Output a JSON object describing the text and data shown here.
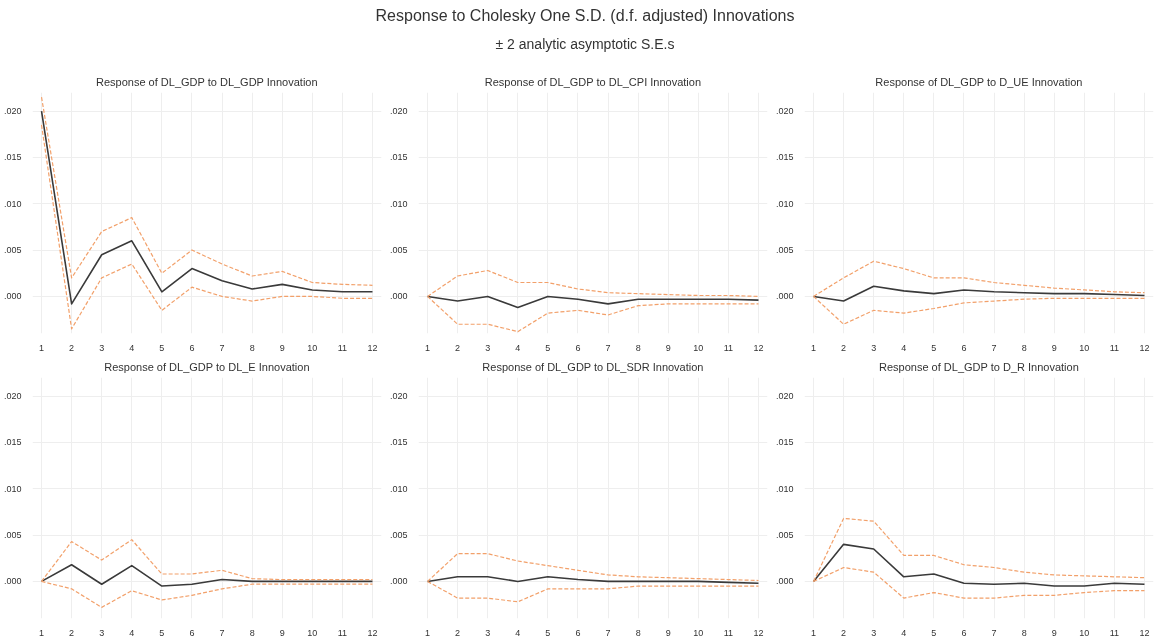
{
  "chart_data": [
    {
      "type": "other",
      "title": "Response to Cholesky One S.D. (d.f. adjusted) Innovations",
      "subtitle": "± 2 analytic asymptotic S.E.s"
    },
    {
      "type": "line",
      "title": "Response of DL_GDP to DL_GDP Innovation",
      "x": [
        1,
        2,
        3,
        4,
        5,
        6,
        7,
        8,
        9,
        10,
        11,
        12
      ],
      "xlim": [
        0.7,
        12.3
      ],
      "xticks": [
        1,
        2,
        3,
        4,
        5,
        6,
        7,
        8,
        9,
        10,
        11,
        12
      ],
      "ylim": [
        -0.004,
        0.022
      ],
      "yticks": [
        {
          "value": 0,
          "label": ".000"
        },
        {
          "value": 0.005,
          "label": ".005"
        },
        {
          "value": 0.01,
          "label": ".010"
        },
        {
          "value": 0.015,
          "label": ".015"
        },
        {
          "value": 0.02,
          "label": ".020"
        }
      ],
      "grid": true,
      "series": [
        {
          "color": "#3a3a3a",
          "line_style": "solid",
          "values": [
            0.02,
            -0.0008,
            0.0045,
            0.006,
            0.0005,
            0.003,
            0.0017,
            0.0008,
            0.0013,
            0.0007,
            0.0005,
            0.0005
          ]
        },
        {
          "color": "#f2a06a",
          "line_style": "dashed",
          "values": [
            0.0215,
            0.002,
            0.007,
            0.0085,
            0.0025,
            0.005,
            0.0035,
            0.0022,
            0.0027,
            0.0015,
            0.0013,
            0.0012
          ]
        },
        {
          "color": "#f2a06a",
          "line_style": "dashed",
          "values": [
            0.0185,
            -0.0035,
            0.002,
            0.0035,
            -0.0015,
            0.001,
            0.0,
            -0.0005,
            0.0,
            0.0,
            -0.0002,
            -0.0002
          ]
        }
      ]
    },
    {
      "type": "line",
      "title": "Response of DL_GDP to DL_CPI Innovation",
      "x": [
        1,
        2,
        3,
        4,
        5,
        6,
        7,
        8,
        9,
        10,
        11,
        12
      ],
      "xlim": [
        0.7,
        12.3
      ],
      "xticks": [
        1,
        2,
        3,
        4,
        5,
        6,
        7,
        8,
        9,
        10,
        11,
        12
      ],
      "ylim": [
        -0.004,
        0.022
      ],
      "yticks": [
        {
          "value": 0,
          "label": ".000"
        },
        {
          "value": 0.005,
          "label": ".005"
        },
        {
          "value": 0.01,
          "label": ".010"
        },
        {
          "value": 0.015,
          "label": ".015"
        },
        {
          "value": 0.02,
          "label": ".020"
        }
      ],
      "grid": true,
      "series": [
        {
          "color": "#3a3a3a",
          "line_style": "solid",
          "values": [
            0,
            -0.0005,
            0,
            -0.0012,
            0,
            -0.0003,
            -0.0008,
            -0.0003,
            -0.0003,
            -0.0003,
            -0.0003,
            -0.0004
          ]
        },
        {
          "color": "#f2a06a",
          "line_style": "dashed",
          "values": [
            0,
            0.0022,
            0.0028,
            0.0015,
            0.0015,
            0.0008,
            0.0004,
            0.0003,
            0.0002,
            0.0001,
            0.0001,
            0.0
          ]
        },
        {
          "color": "#f2a06a",
          "line_style": "dashed",
          "values": [
            0,
            -0.003,
            -0.003,
            -0.0038,
            -0.0018,
            -0.0015,
            -0.002,
            -0.001,
            -0.0008,
            -0.0008,
            -0.0008,
            -0.0008
          ]
        }
      ]
    },
    {
      "type": "line",
      "title": "Response of DL_GDP to D_UE Innovation",
      "x": [
        1,
        2,
        3,
        4,
        5,
        6,
        7,
        8,
        9,
        10,
        11,
        12
      ],
      "xlim": [
        0.7,
        12.3
      ],
      "xticks": [
        1,
        2,
        3,
        4,
        5,
        6,
        7,
        8,
        9,
        10,
        11,
        12
      ],
      "ylim": [
        -0.004,
        0.022
      ],
      "yticks": [
        {
          "value": 0,
          "label": ".000"
        },
        {
          "value": 0.005,
          "label": ".005"
        },
        {
          "value": 0.01,
          "label": ".010"
        },
        {
          "value": 0.015,
          "label": ".015"
        },
        {
          "value": 0.02,
          "label": ".020"
        }
      ],
      "grid": true,
      "series": [
        {
          "color": "#3a3a3a",
          "line_style": "solid",
          "values": [
            0,
            -0.0005,
            0.0011,
            0.0006,
            0.0003,
            0.0007,
            0.0005,
            0.0004,
            0.0003,
            0.0003,
            0.0002,
            0.0001
          ]
        },
        {
          "color": "#f2a06a",
          "line_style": "dashed",
          "values": [
            0,
            0.002,
            0.0038,
            0.003,
            0.002,
            0.002,
            0.0015,
            0.0012,
            0.0009,
            0.0007,
            0.0005,
            0.0004
          ]
        },
        {
          "color": "#f2a06a",
          "line_style": "dashed",
          "values": [
            0,
            -0.003,
            -0.0015,
            -0.0018,
            -0.0013,
            -0.0007,
            -0.0005,
            -0.0003,
            -0.0002,
            -0.0002,
            -0.0002,
            -0.0002
          ]
        }
      ]
    },
    {
      "type": "line",
      "title": "Response of DL_GDP to DL_E Innovation",
      "x": [
        1,
        2,
        3,
        4,
        5,
        6,
        7,
        8,
        9,
        10,
        11,
        12
      ],
      "xlim": [
        0.7,
        12.3
      ],
      "xticks": [
        1,
        2,
        3,
        4,
        5,
        6,
        7,
        8,
        9,
        10,
        11,
        12
      ],
      "ylim": [
        -0.004,
        0.022
      ],
      "yticks": [
        {
          "value": 0,
          "label": ".000"
        },
        {
          "value": 0.005,
          "label": ".005"
        },
        {
          "value": 0.01,
          "label": ".010"
        },
        {
          "value": 0.015,
          "label": ".015"
        },
        {
          "value": 0.02,
          "label": ".020"
        }
      ],
      "grid": true,
      "series": [
        {
          "color": "#3a3a3a",
          "line_style": "solid",
          "values": [
            0,
            0.0018,
            -0.0003,
            0.0017,
            -0.0005,
            -0.0003,
            0.0002,
            0.0,
            0,
            0,
            0,
            0
          ]
        },
        {
          "color": "#f2a06a",
          "line_style": "dashed",
          "values": [
            0,
            0.0043,
            0.0023,
            0.0045,
            0.0008,
            0.0008,
            0.0012,
            0.0003,
            0.0002,
            0.0002,
            0.0002,
            0.0002
          ]
        },
        {
          "color": "#f2a06a",
          "line_style": "dashed",
          "values": [
            0,
            -0.0008,
            -0.0028,
            -0.001,
            -0.002,
            -0.0015,
            -0.0008,
            -0.0003,
            -0.0003,
            -0.0003,
            -0.0003,
            -0.0003
          ]
        }
      ]
    },
    {
      "type": "line",
      "title": "Response of DL_GDP to DL_SDR Innovation",
      "x": [
        1,
        2,
        3,
        4,
        5,
        6,
        7,
        8,
        9,
        10,
        11,
        12
      ],
      "xlim": [
        0.7,
        12.3
      ],
      "xticks": [
        1,
        2,
        3,
        4,
        5,
        6,
        7,
        8,
        9,
        10,
        11,
        12
      ],
      "ylim": [
        -0.004,
        0.022
      ],
      "yticks": [
        {
          "value": 0,
          "label": ".000"
        },
        {
          "value": 0.005,
          "label": ".005"
        },
        {
          "value": 0.01,
          "label": ".010"
        },
        {
          "value": 0.015,
          "label": ".015"
        },
        {
          "value": 0.02,
          "label": ".020"
        }
      ],
      "grid": true,
      "series": [
        {
          "color": "#3a3a3a",
          "line_style": "solid",
          "values": [
            0,
            0.0005,
            0.0005,
            0,
            0.0005,
            0.0002,
            0,
            0,
            0,
            0,
            -0.0001,
            -0.0002
          ]
        },
        {
          "color": "#f2a06a",
          "line_style": "dashed",
          "values": [
            0,
            0.003,
            0.003,
            0.0022,
            0.0017,
            0.0012,
            0.0007,
            0.0005,
            0.0004,
            0.0003,
            0.0002,
            0.0001
          ]
        },
        {
          "color": "#f2a06a",
          "line_style": "dashed",
          "values": [
            0,
            -0.0018,
            -0.0018,
            -0.0022,
            -0.0008,
            -0.0008,
            -0.0008,
            -0.0005,
            -0.0005,
            -0.0005,
            -0.0005,
            -0.0005
          ]
        }
      ]
    },
    {
      "type": "line",
      "title": "Response of DL_GDP to D_R Innovation",
      "x": [
        1,
        2,
        3,
        4,
        5,
        6,
        7,
        8,
        9,
        10,
        11,
        12
      ],
      "xlim": [
        0.7,
        12.3
      ],
      "xticks": [
        1,
        2,
        3,
        4,
        5,
        6,
        7,
        8,
        9,
        10,
        11,
        12
      ],
      "ylim": [
        -0.004,
        0.022
      ],
      "yticks": [
        {
          "value": 0,
          "label": ".000"
        },
        {
          "value": 0.005,
          "label": ".005"
        },
        {
          "value": 0.01,
          "label": ".010"
        },
        {
          "value": 0.015,
          "label": ".015"
        },
        {
          "value": 0.02,
          "label": ".020"
        }
      ],
      "grid": true,
      "series": [
        {
          "color": "#3a3a3a",
          "line_style": "solid",
          "values": [
            0,
            0.004,
            0.0035,
            0.0005,
            0.0008,
            -0.0002,
            -0.0003,
            -0.0002,
            -0.0005,
            -0.0005,
            -0.0002,
            -0.0003
          ]
        },
        {
          "color": "#f2a06a",
          "line_style": "dashed",
          "values": [
            0,
            0.0068,
            0.0065,
            0.0028,
            0.0028,
            0.0018,
            0.0015,
            0.001,
            0.0007,
            0.0006,
            0.0005,
            0.0004
          ]
        },
        {
          "color": "#f2a06a",
          "line_style": "dashed",
          "values": [
            0,
            0.0015,
            0.001,
            -0.0018,
            -0.0012,
            -0.0018,
            -0.0018,
            -0.0015,
            -0.0015,
            -0.0012,
            -0.001,
            -0.001
          ]
        }
      ]
    }
  ]
}
